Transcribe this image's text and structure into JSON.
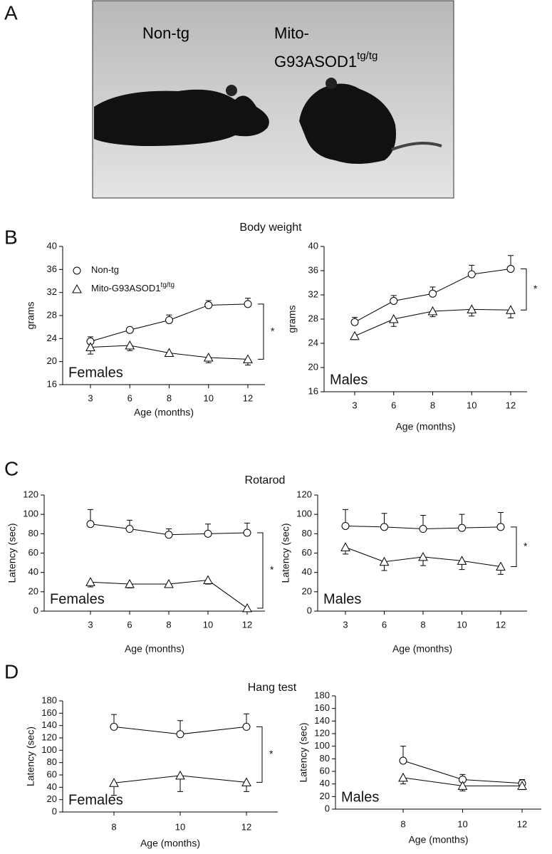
{
  "panel_letters": [
    "A",
    "B",
    "C",
    "D"
  ],
  "section_titles": [
    "Body weight",
    "Rotarod",
    "Hang test"
  ],
  "photo": {
    "labels": [
      "Non-tg",
      "Mito-",
      "G93ASOD1",
      "tg/tg"
    ]
  },
  "chart_data": [
    {
      "type": "line",
      "group_label": "Females",
      "y_label": "grams",
      "x_label": "Age (months)",
      "annotation": "*",
      "categories": [
        "3",
        "6",
        "8",
        "10",
        "12"
      ],
      "ylim": [
        16,
        40
      ],
      "yticks": [
        16,
        20,
        24,
        28,
        32,
        36,
        40
      ],
      "legend": true,
      "series": [
        {
          "name": "Non-tg",
          "marker": "circle",
          "color": "#000000",
          "values": [
            23.5,
            25.5,
            27.2,
            29.8,
            30.0
          ],
          "errors": [
            0.8,
            0.4,
            0.9,
            0.8,
            1.0
          ]
        },
        {
          "name": "Mito-G93ASOD1",
          "name_superscript": "tg/tg",
          "marker": "triangle",
          "color": "#000000",
          "values": [
            22.5,
            22.8,
            21.5,
            20.7,
            20.4
          ],
          "errors": [
            1.2,
            0.9,
            0.6,
            0.9,
            1.0
          ]
        }
      ]
    },
    {
      "type": "line",
      "group_label": "Males",
      "y_label": "grams",
      "x_label": "Age (months)",
      "annotation": "*",
      "categories": [
        "3",
        "6",
        "8",
        "10",
        "12"
      ],
      "ylim": [
        16,
        40
      ],
      "yticks": [
        16,
        20,
        24,
        28,
        32,
        36,
        40
      ],
      "series": [
        {
          "marker": "circle",
          "color": "#000000",
          "values": [
            27.5,
            31.0,
            32.2,
            35.4,
            36.3
          ],
          "errors": [
            0.8,
            0.9,
            1.1,
            1.5,
            2.2
          ]
        },
        {
          "marker": "triangle",
          "color": "#000000",
          "values": [
            25.2,
            28.0,
            29.3,
            29.6,
            29.5
          ],
          "errors": [
            0.6,
            1.2,
            0.9,
            1.1,
            1.3
          ]
        }
      ]
    },
    {
      "type": "line",
      "group_label": "Females",
      "y_label": "Latency (sec)",
      "x_label": "Age (months)",
      "annotation": "*",
      "categories": [
        "3",
        "6",
        "8",
        "10",
        "12"
      ],
      "ylim": [
        0,
        120
      ],
      "yticks": [
        0,
        20,
        40,
        60,
        80,
        100,
        120
      ],
      "series": [
        {
          "marker": "circle",
          "color": "#000000",
          "values": [
            90,
            85,
            79,
            80,
            81
          ],
          "errors": [
            15,
            9,
            6,
            10,
            10
          ]
        },
        {
          "marker": "triangle",
          "color": "#000000",
          "values": [
            30,
            28,
            28,
            32,
            3
          ],
          "errors": [
            5,
            4,
            2,
            4,
            1
          ]
        }
      ]
    },
    {
      "type": "line",
      "group_label": "Males",
      "y_label": "Latency (sec)",
      "x_label": "Age (months)",
      "annotation": "*",
      "categories": [
        "3",
        "6",
        "8",
        "10",
        "12"
      ],
      "ylim": [
        0,
        120
      ],
      "yticks": [
        0,
        20,
        40,
        60,
        80,
        100,
        120
      ],
      "series": [
        {
          "marker": "circle",
          "color": "#000000",
          "values": [
            88,
            87,
            85,
            86,
            87
          ],
          "errors": [
            17,
            14,
            14,
            14,
            15
          ]
        },
        {
          "marker": "triangle",
          "color": "#000000",
          "values": [
            66,
            51,
            56,
            52,
            46
          ],
          "errors": [
            7,
            9,
            9,
            9,
            8
          ]
        }
      ]
    },
    {
      "type": "line",
      "group_label": "Females",
      "y_label": "Latency (sec)",
      "x_label": "Age (months)",
      "annotation": "*",
      "categories": [
        "8",
        "10",
        "12"
      ],
      "ylim": [
        0,
        180
      ],
      "yticks": [
        0,
        20,
        40,
        60,
        80,
        100,
        120,
        140,
        160,
        180
      ],
      "series": [
        {
          "marker": "circle",
          "color": "#000000",
          "values": [
            138,
            126,
            138
          ],
          "errors": [
            20,
            22,
            21
          ]
        },
        {
          "marker": "triangle",
          "color": "#000000",
          "values": [
            47,
            59,
            48
          ],
          "errors": [
            20,
            26,
            15
          ]
        }
      ]
    },
    {
      "type": "line",
      "group_label": "Males",
      "y_label": "Latency (sec)",
      "x_label": "Age (months)",
      "categories": [
        "8",
        "10",
        "12"
      ],
      "ylim": [
        0,
        180
      ],
      "yticks": [
        0,
        20,
        40,
        60,
        80,
        100,
        120,
        140,
        160,
        180
      ],
      "series": [
        {
          "marker": "circle",
          "color": "#000000",
          "values": [
            77,
            47,
            41
          ],
          "errors": [
            23,
            8,
            6
          ]
        },
        {
          "marker": "triangle",
          "color": "#000000",
          "values": [
            50,
            37,
            37
          ],
          "errors": [
            10,
            8,
            6
          ]
        }
      ]
    }
  ]
}
